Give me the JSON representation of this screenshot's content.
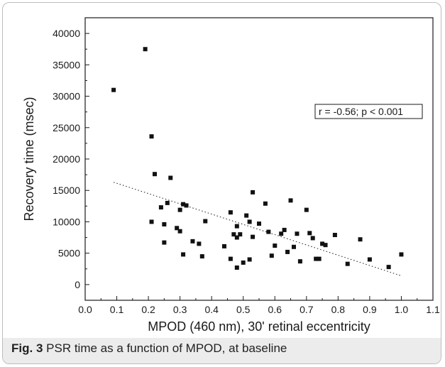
{
  "chart_data": {
    "type": "scatter",
    "xlabel": "MPOD (460 nm), 30' retinal eccentricity",
    "ylabel": "Recovery time (msec)",
    "xlim": [
      0.0,
      1.1
    ],
    "ylim": [
      -2500,
      42500
    ],
    "x_ticks": [
      "0.0",
      "0.1",
      "0.2",
      "0.3",
      "0.4",
      "0.5",
      "0.6",
      "0.7",
      "0.8",
      "0.9",
      "1.0",
      "1.1"
    ],
    "y_ticks": [
      "0",
      "5000",
      "10000",
      "15000",
      "20000",
      "25000",
      "30000",
      "35000",
      "40000"
    ],
    "annotation": "r = -0.56; p < 0.001",
    "grid": false,
    "trend_line": {
      "style": "dotted",
      "from": [
        0.09,
        16300
      ],
      "to": [
        1.0,
        1400
      ]
    },
    "points": [
      [
        0.09,
        31000
      ],
      [
        0.19,
        37500
      ],
      [
        0.21,
        23600
      ],
      [
        0.22,
        17600
      ],
      [
        0.21,
        10000
      ],
      [
        0.24,
        12300
      ],
      [
        0.25,
        9600
      ],
      [
        0.25,
        6700
      ],
      [
        0.26,
        13000
      ],
      [
        0.27,
        17000
      ],
      [
        0.29,
        9000
      ],
      [
        0.3,
        11900
      ],
      [
        0.3,
        8500
      ],
      [
        0.31,
        12800
      ],
      [
        0.31,
        4800
      ],
      [
        0.32,
        12600
      ],
      [
        0.34,
        6900
      ],
      [
        0.36,
        6500
      ],
      [
        0.37,
        4500
      ],
      [
        0.38,
        10100
      ],
      [
        0.44,
        6100
      ],
      [
        0.46,
        11500
      ],
      [
        0.46,
        4100
      ],
      [
        0.47,
        8000
      ],
      [
        0.48,
        7500
      ],
      [
        0.48,
        2700
      ],
      [
        0.48,
        9300
      ],
      [
        0.49,
        8000
      ],
      [
        0.5,
        3500
      ],
      [
        0.51,
        11000
      ],
      [
        0.52,
        10000
      ],
      [
        0.52,
        4000
      ],
      [
        0.53,
        7600
      ],
      [
        0.53,
        14700
      ],
      [
        0.55,
        9700
      ],
      [
        0.57,
        12900
      ],
      [
        0.58,
        8400
      ],
      [
        0.59,
        4600
      ],
      [
        0.6,
        6200
      ],
      [
        0.62,
        8100
      ],
      [
        0.63,
        8700
      ],
      [
        0.64,
        5200
      ],
      [
        0.65,
        13400
      ],
      [
        0.66,
        6000
      ],
      [
        0.67,
        8100
      ],
      [
        0.68,
        3700
      ],
      [
        0.7,
        11900
      ],
      [
        0.71,
        8200
      ],
      [
        0.72,
        7400
      ],
      [
        0.73,
        4100
      ],
      [
        0.74,
        4100
      ],
      [
        0.75,
        6500
      ],
      [
        0.76,
        6300
      ],
      [
        0.79,
        7900
      ],
      [
        0.83,
        3300
      ],
      [
        0.87,
        7200
      ],
      [
        0.9,
        4000
      ],
      [
        0.96,
        2800
      ],
      [
        1.0,
        4800
      ]
    ]
  },
  "caption": {
    "label": "Fig. 3",
    "text": "PSR time as a function of MPOD, at baseline"
  }
}
